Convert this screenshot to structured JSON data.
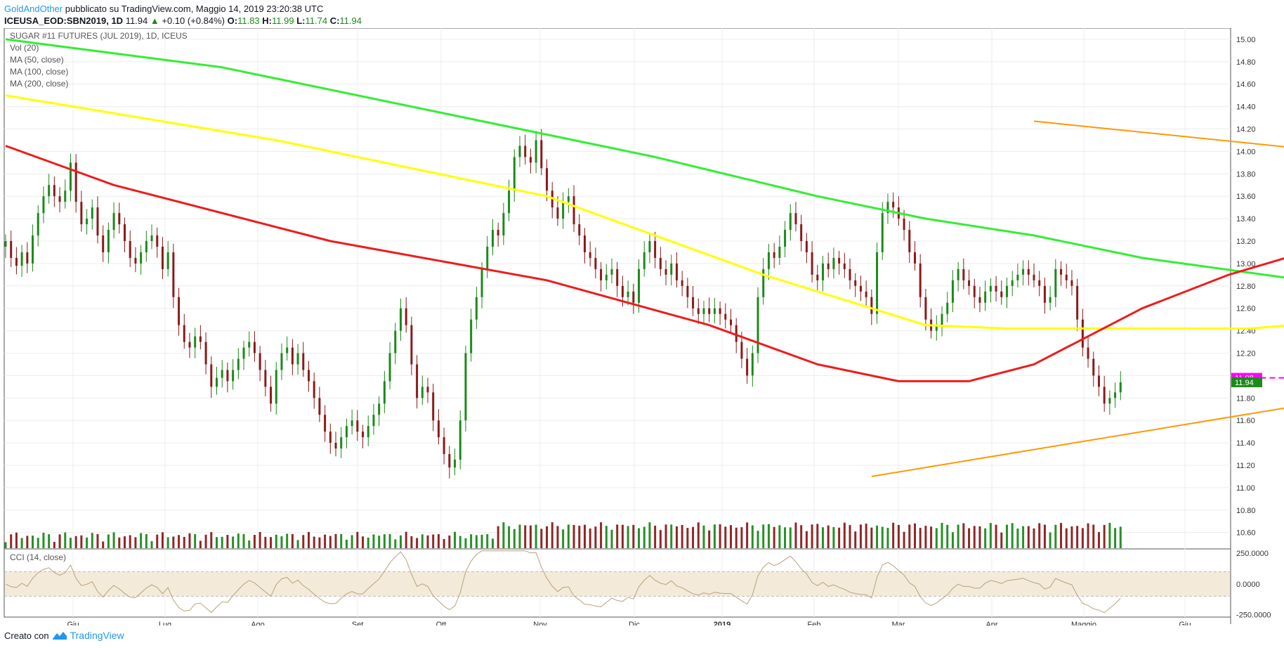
{
  "header": {
    "author": "GoldAndOther",
    "published": "pubblicato su TradingView.com, Maggio 14, 2019 23:20:38 UTC",
    "symbol": "ICEUSA_EOD:SBN2019, 1D",
    "last": "11.94",
    "arrow": "▲",
    "change": "+0.10 (+0.84%)",
    "o_label": "O:",
    "o": "11.83",
    "h_label": "H:",
    "h": "11.99",
    "l_label": "L:",
    "l": "11.74",
    "c_label": "C:",
    "c": "11.94"
  },
  "legend": [
    "SUGAR #11 FUTURES (JUL 2019), 1D, ICEUS",
    "Vol (20)",
    "MA (50, close)",
    "MA (100, close)",
    "MA (200, close)"
  ],
  "cci_label": "CCI (14, close)",
  "footer": {
    "made_with": "Creato con",
    "brand": "TradingView"
  },
  "colors": {
    "up": "#1b8a1b",
    "down": "#8b1a1a",
    "ma50": "#ee1c1c",
    "ma100": "#ffff00",
    "ma200": "#33ee33",
    "trend": "#ff9800",
    "level": "#ff00ff",
    "vol_ma": "#bfe3f7"
  },
  "chart_data": {
    "type": "candlestick",
    "title": "SUGAR #11 FUTURES (JUL 2019), 1D, ICEUS",
    "ylim": [
      10.46,
      15.1
    ],
    "y_ticks": [
      "15.00",
      "14.80",
      "14.60",
      "14.40",
      "14.20",
      "14.00",
      "13.80",
      "13.60",
      "13.40",
      "13.20",
      "13.00",
      "12.80",
      "12.60",
      "12.40",
      "12.20",
      "12.00",
      "11.80",
      "11.60",
      "11.40",
      "11.20",
      "11.00",
      "10.80",
      "10.60"
    ],
    "x_ticks": [
      "Giu",
      "Lug",
      "Ago",
      "Set",
      "Ott",
      "Nov",
      "Dic",
      "2019",
      "Feb",
      "Mar",
      "Apr",
      "Maggio",
      "Giu"
    ],
    "price_labels": {
      "level": "11.98",
      "last": "11.94"
    },
    "closes": [
      13.2,
      13.05,
      12.98,
      13.1,
      13.0,
      13.25,
      13.45,
      13.6,
      13.7,
      13.6,
      13.55,
      13.65,
      13.9,
      13.55,
      13.35,
      13.4,
      13.5,
      13.25,
      13.1,
      13.3,
      13.45,
      13.35,
      13.2,
      13.05,
      13.0,
      13.1,
      13.2,
      13.25,
      13.15,
      12.95,
      13.1,
      12.7,
      12.45,
      12.3,
      12.25,
      12.35,
      12.3,
      12.1,
      11.9,
      11.98,
      12.05,
      11.95,
      12.05,
      12.15,
      12.25,
      12.3,
      12.2,
      12.05,
      11.9,
      11.75,
      12.05,
      12.2,
      12.25,
      12.1,
      12.2,
      12.05,
      11.95,
      11.8,
      11.65,
      11.5,
      11.4,
      11.35,
      11.45,
      11.55,
      11.6,
      11.5,
      11.45,
      11.55,
      11.65,
      11.75,
      11.95,
      12.2,
      12.4,
      12.6,
      12.45,
      12.1,
      11.8,
      11.9,
      11.85,
      11.6,
      11.45,
      11.3,
      11.18,
      11.25,
      11.6,
      12.2,
      12.5,
      12.7,
      12.95,
      13.15,
      13.3,
      13.25,
      13.45,
      13.65,
      13.95,
      14.05,
      13.95,
      13.9,
      14.1,
      13.85,
      13.65,
      13.5,
      13.4,
      13.55,
      13.6,
      13.35,
      13.25,
      13.1,
      13.05,
      12.95,
      12.85,
      12.9,
      12.95,
      12.8,
      12.7,
      12.75,
      12.65,
      12.95,
      13.1,
      13.2,
      13.05,
      12.95,
      12.9,
      13.0,
      12.85,
      12.8,
      12.7,
      12.6,
      12.55,
      12.6,
      12.55,
      12.6,
      12.55,
      12.5,
      12.45,
      12.3,
      12.15,
      12.0,
      12.2,
      12.7,
      12.95,
      13.1,
      13.05,
      13.15,
      13.3,
      13.45,
      13.35,
      13.2,
      13.1,
      12.9,
      12.85,
      13.0,
      12.95,
      13.05,
      13.0,
      12.95,
      12.85,
      12.8,
      12.75,
      12.7,
      12.55,
      13.1,
      13.45,
      13.55,
      13.5,
      13.4,
      13.3,
      13.1,
      13.0,
      12.7,
      12.5,
      12.4,
      12.45,
      12.55,
      12.65,
      12.85,
      12.95,
      12.85,
      12.8,
      12.7,
      12.65,
      12.75,
      12.8,
      12.75,
      12.7,
      12.8,
      12.85,
      12.9,
      12.95,
      12.9,
      12.85,
      12.8,
      12.65,
      12.7,
      12.95,
      12.9,
      12.85,
      12.8,
      12.5,
      12.25,
      12.15,
      12.0,
      11.9,
      11.75,
      11.8,
      11.85,
      11.94
    ],
    "ma50": [
      [
        0,
        14.05
      ],
      [
        20,
        13.7
      ],
      [
        60,
        13.2
      ],
      [
        100,
        12.85
      ],
      [
        130,
        12.45
      ],
      [
        150,
        12.1
      ],
      [
        165,
        11.95
      ],
      [
        178,
        11.95
      ],
      [
        190,
        12.1
      ],
      [
        210,
        12.6
      ],
      [
        226,
        12.9
      ],
      [
        240,
        13.1
      ],
      [
        250,
        13.2
      ],
      [
        260,
        13.1
      ],
      [
        270,
        12.95
      ],
      [
        280,
        12.9
      ],
      [
        300,
        12.9
      ],
      [
        320,
        12.9
      ],
      [
        330,
        12.85
      ],
      [
        340,
        12.85
      ],
      [
        360,
        12.9
      ],
      [
        380,
        12.95
      ],
      [
        400,
        12.85
      ],
      [
        410,
        12.75
      ],
      [
        418,
        12.6
      ]
    ],
    "ma100": [
      [
        0,
        14.5
      ],
      [
        50,
        14.1
      ],
      [
        100,
        13.6
      ],
      [
        140,
        12.9
      ],
      [
        170,
        12.45
      ],
      [
        185,
        12.42
      ],
      [
        210,
        12.42
      ],
      [
        230,
        12.42
      ],
      [
        250,
        12.5
      ],
      [
        270,
        12.55
      ],
      [
        290,
        12.65
      ],
      [
        300,
        12.8
      ],
      [
        315,
        13.0
      ],
      [
        330,
        13.05
      ],
      [
        350,
        13.0
      ],
      [
        370,
        12.9
      ],
      [
        390,
        12.85
      ],
      [
        405,
        12.8
      ],
      [
        418,
        12.73
      ]
    ],
    "ma200": [
      [
        0,
        15.0
      ],
      [
        40,
        14.75
      ],
      [
        80,
        14.35
      ],
      [
        120,
        13.95
      ],
      [
        150,
        13.6
      ],
      [
        170,
        13.4
      ],
      [
        190,
        13.25
      ],
      [
        210,
        13.05
      ],
      [
        240,
        12.85
      ],
      [
        270,
        12.78
      ],
      [
        300,
        12.7
      ],
      [
        330,
        12.65
      ],
      [
        360,
        12.62
      ],
      [
        390,
        12.65
      ],
      [
        418,
        12.63
      ]
    ],
    "trend_upper": [
      [
        190,
        14.27
      ],
      [
        407,
        13.2
      ]
    ],
    "trend_lower": [
      [
        160,
        11.1
      ],
      [
        270,
        11.98
      ],
      [
        407,
        13.05
      ]
    ],
    "level": 11.98,
    "volume": [
      1,
      1,
      1,
      1,
      1,
      1,
      1,
      1,
      1,
      1,
      1,
      1,
      1,
      1,
      1,
      1,
      1,
      1,
      1,
      1,
      1,
      1,
      1,
      1,
      1,
      1,
      1,
      1,
      1,
      1,
      1,
      1,
      1,
      1,
      1,
      1,
      1,
      1,
      1,
      1,
      1,
      1,
      1,
      1,
      1,
      1,
      1,
      1,
      1,
      1,
      1,
      1,
      1,
      1,
      1,
      1,
      1,
      1,
      1,
      1,
      1,
      1,
      1,
      1,
      1,
      1,
      1,
      1,
      1,
      1,
      1,
      1,
      1,
      1,
      1,
      1,
      1,
      1,
      1,
      1,
      1,
      1,
      1,
      1,
      1,
      1,
      1,
      1,
      1,
      1,
      1,
      1,
      1,
      1,
      1,
      1,
      1,
      1,
      1,
      1,
      1,
      1,
      1,
      1,
      1,
      1,
      1,
      1,
      1,
      1,
      1,
      1,
      1,
      1,
      1,
      1,
      1,
      1,
      1,
      1,
      1,
      1,
      1,
      1,
      1,
      1,
      1,
      1,
      1,
      1,
      1,
      1,
      1,
      1,
      1,
      1,
      1,
      1,
      1,
      1,
      1,
      1,
      1,
      1,
      1,
      1,
      1,
      1,
      1,
      1,
      1,
      1,
      1,
      1,
      1,
      1,
      1,
      1,
      1,
      1,
      1,
      1,
      1,
      1,
      1,
      1,
      1,
      1,
      1,
      1,
      1,
      1,
      1,
      1,
      1,
      1,
      1,
      1,
      1,
      1,
      1,
      1,
      1,
      1,
      1,
      1,
      1,
      1,
      1,
      1,
      1,
      1,
      1,
      1,
      1,
      1,
      1,
      1,
      1,
      1,
      1,
      1,
      1,
      1,
      1,
      1,
      1,
      1,
      1,
      1,
      1,
      1,
      1,
      1,
      1,
      1,
      1,
      1,
      1,
      1,
      1,
      1
    ],
    "cci": [
      0
    ],
    "cci_ticks": [
      "250.0000",
      "0.0000",
      "-250.0000"
    ],
    "cci_range": [
      -270,
      280
    ]
  }
}
